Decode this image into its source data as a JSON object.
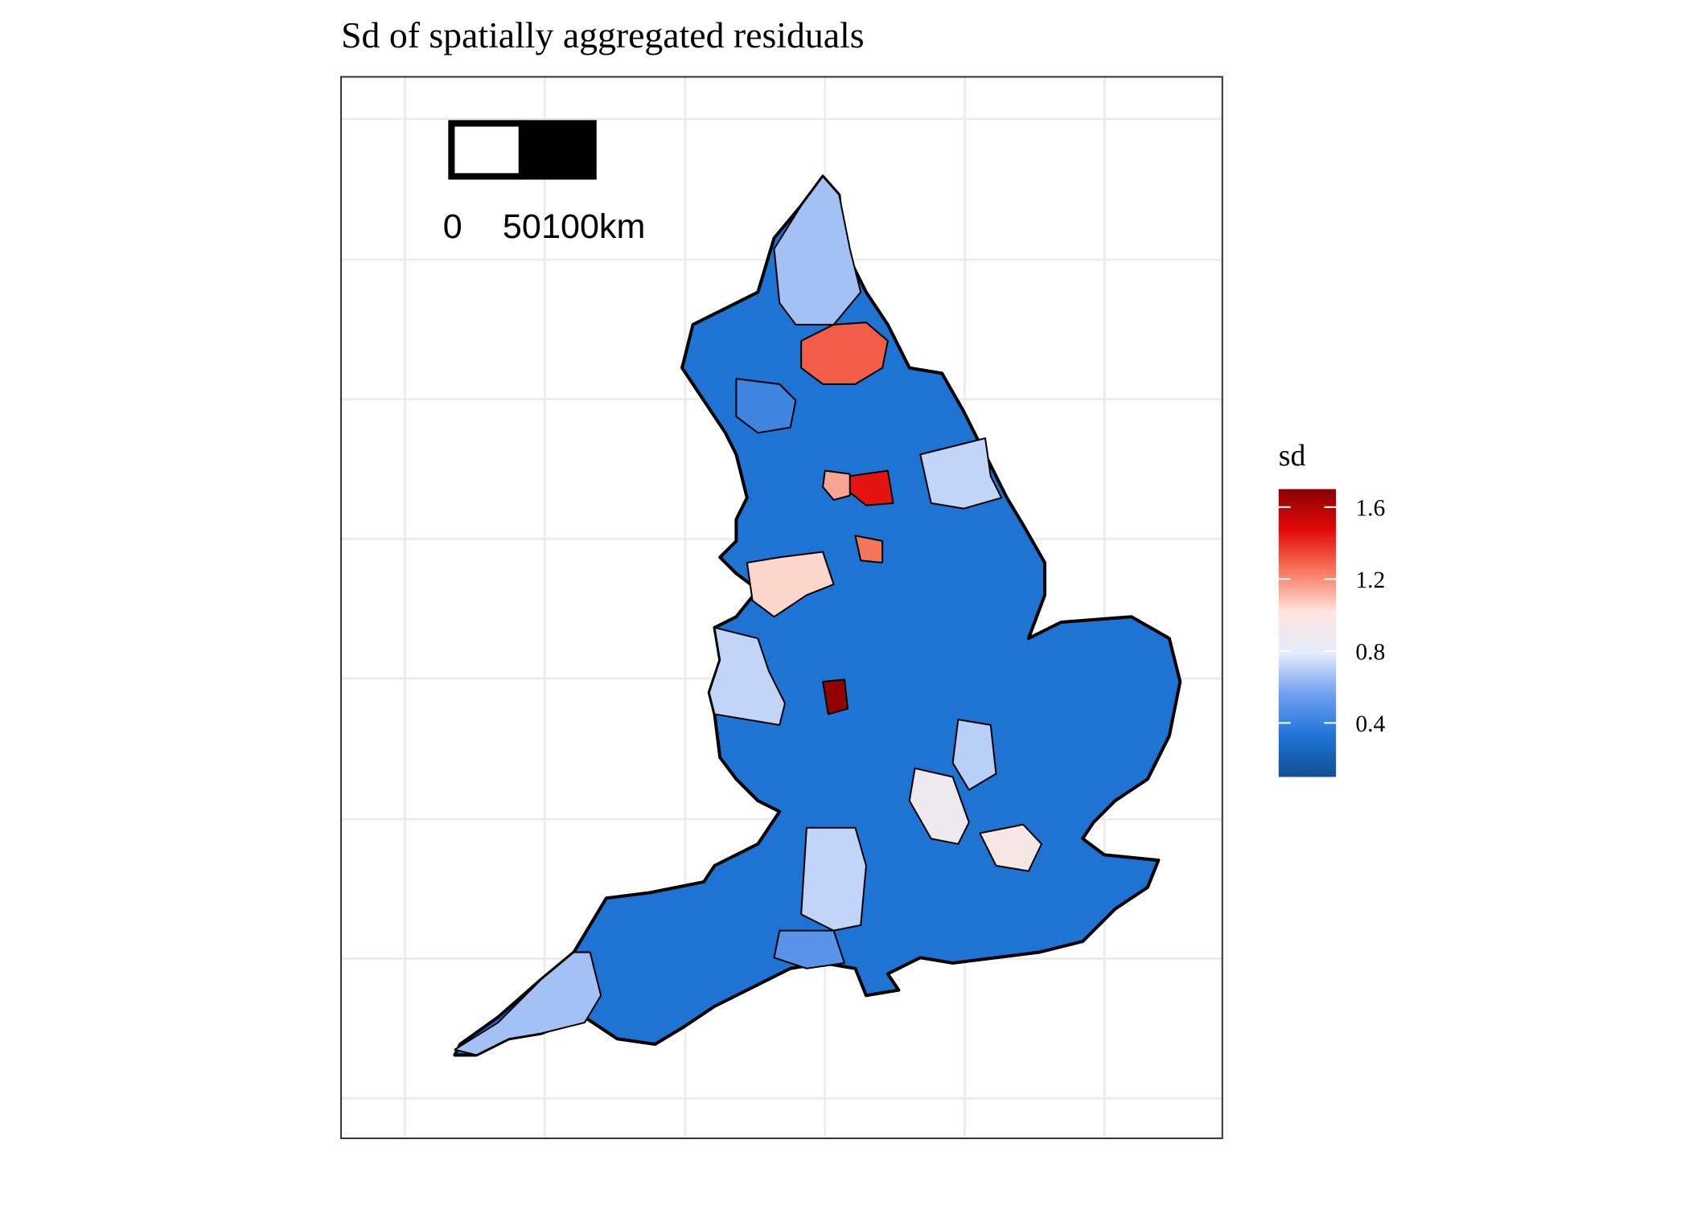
{
  "chart_data": {
    "type": "choropleth",
    "title": "Sd of spatially aggregated residuals",
    "scale_bar": {
      "labels": [
        "0",
        "50",
        "100km"
      ]
    },
    "legend": {
      "title": "sd",
      "limits": [
        0.1,
        1.7
      ],
      "ticks": [
        0.4,
        0.8,
        1.2,
        1.6
      ],
      "colors": [
        "#114f92",
        "#1f74d6",
        "#6e9ff0",
        "#e4ebfb",
        "#fde6df",
        "#f7795f",
        "#e30a0a",
        "#8b0000"
      ]
    },
    "values": [
      0.32,
      0.66,
      1.3,
      1.45,
      1.15,
      1.25,
      1.05,
      1.68,
      0.88,
      0.72,
      0.66,
      0.72,
      0.42,
      0.72,
      0.5,
      0.95,
      0.7
    ],
    "grid": true
  }
}
